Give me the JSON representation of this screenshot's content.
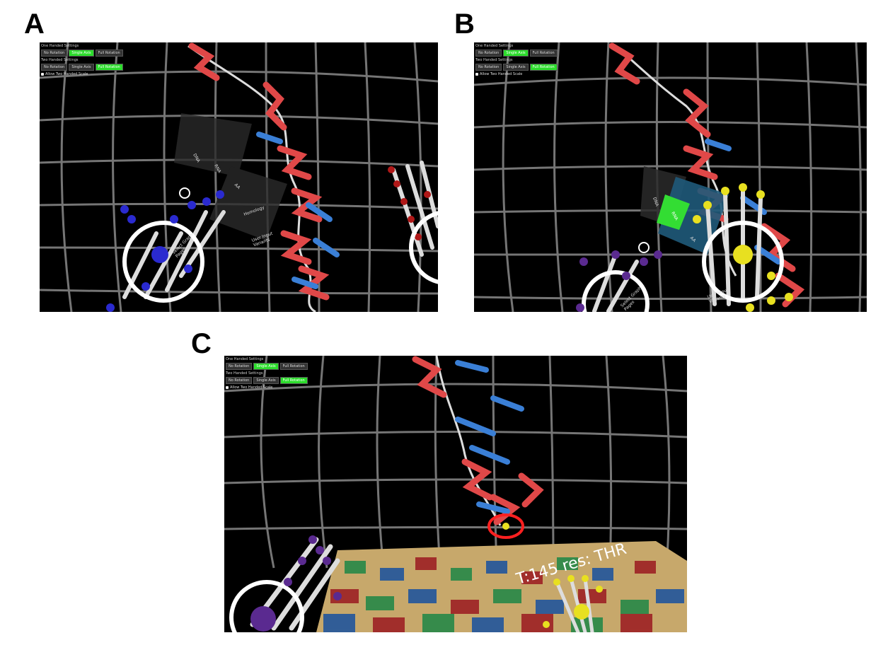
{
  "panels": {
    "a": {
      "label": "A",
      "hud": {
        "one_handed": "One Handed Settings",
        "two_handed": "Two Handed Settings",
        "row1": [
          "No Rotation",
          "Single Axis",
          "Full Rotation"
        ],
        "row1_active": 1,
        "row2": [
          "No Rotation",
          "Single Axis",
          "Full Rotation"
        ],
        "row2_active": 2,
        "check": "Allow Two Handed Scale"
      },
      "menu": [
        "DNA",
        "RNA",
        "AA",
        "Homology",
        "User Input Variants"
      ],
      "hand_menu": "Select Graph Pages"
    },
    "b": {
      "label": "B",
      "hud": {
        "one_handed": "One Handed Settings",
        "two_handed": "Two Handed Settings",
        "row1": [
          "No Rotation",
          "Single Axis",
          "Full Rotation"
        ],
        "row2": [
          "No Rotation",
          "Single Axis",
          "Full Rotation"
        ],
        "check": "Allow Two Handed Scale"
      },
      "menu": [
        "DNA",
        "RNA",
        "AA",
        "User Input Variants"
      ],
      "hand_menu": "Select Graph Pages"
    },
    "c": {
      "label": "C",
      "hud": {
        "one_handed": "One Handed Settings",
        "two_handed": "Two Handed Settings",
        "row1": [
          "No Rotation",
          "Single Axis",
          "Full Rotation"
        ],
        "row2": [
          "No Rotation",
          "Single Axis",
          "Full Rotation"
        ],
        "check": "Allow Two Handed Scale"
      },
      "readout": "T:145 res: THR"
    }
  },
  "colors": {
    "helix": "#e04848",
    "sheet": "#3a7fd6",
    "coil": "#dddddd",
    "grid": "#8a8a8a",
    "hand_blue": "#2a2ad0",
    "hand_purple": "#5a2a90",
    "hand_yellow": "#e8e020",
    "hand_red": "#b01818",
    "highlight": "#ff2020",
    "menu_active": "#33dd33"
  }
}
